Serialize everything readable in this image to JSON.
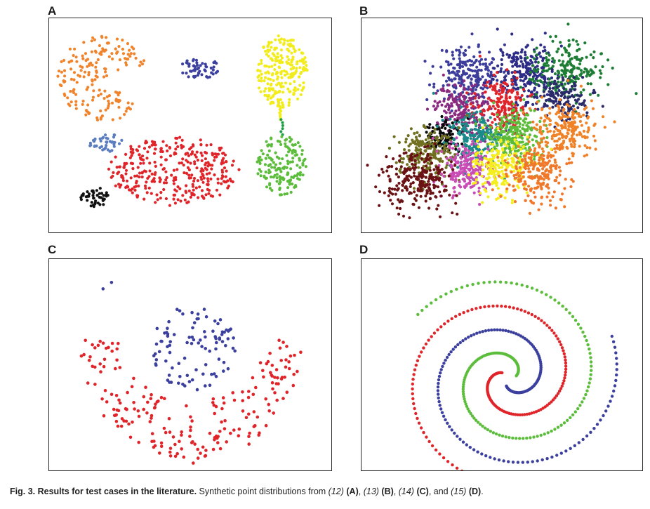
{
  "panels": [
    {
      "label": "A",
      "source": "12"
    },
    {
      "label": "B",
      "source": "13"
    },
    {
      "label": "C",
      "source": "14"
    },
    {
      "label": "D",
      "source": "15"
    }
  ],
  "caption": {
    "bold": "Fig. 3. Results for test cases in the literature.",
    "text_a": "Synthetic point distributions from",
    "ref_a": "(12)",
    "label_a": "(A)",
    "ref_b": "(13)",
    "label_b": "(B)",
    "ref_c": "(14)",
    "label_c": "(C)",
    "ref_d": "(15)",
    "label_d": "(D)",
    "and": "and",
    "end": "."
  },
  "chart_data": [
    {
      "type": "scatter",
      "title": "A",
      "xlim": [
        0,
        100
      ],
      "ylim": [
        0,
        100
      ],
      "grid": false,
      "clusters": [
        {
          "color": "#f0842c",
          "shape": "pacman",
          "center": [
            19,
            72
          ],
          "radius": [
            16,
            20
          ],
          "count": 180
        },
        {
          "color": "#3b3f9e",
          "shape": "ellipse",
          "center": [
            53,
            77
          ],
          "radius": [
            7,
            5
          ],
          "count": 55
        },
        {
          "color": "#f2ec1d",
          "shape": "ellipse",
          "center": [
            82,
            75
          ],
          "radius": [
            9,
            17
          ],
          "count": 230
        },
        {
          "color": "#f2ec1d",
          "shape": "bridge",
          "from": [
            81,
            60
          ],
          "to": [
            82,
            53
          ],
          "count": 10
        },
        {
          "color": "#23a14a",
          "shape": "bridge",
          "from": [
            82,
            53
          ],
          "to": [
            82,
            46
          ],
          "count": 6
        },
        {
          "color": "#5a7cc0",
          "shape": "ellipse",
          "center": [
            20,
            42
          ],
          "radius": [
            6,
            4.5
          ],
          "count": 40
        },
        {
          "color": "#e0252a",
          "shape": "ellipse",
          "center": [
            44,
            29
          ],
          "radius": [
            23,
            16
          ],
          "count": 330
        },
        {
          "color": "#5bbd3b",
          "shape": "ellipse",
          "center": [
            82,
            32
          ],
          "radius": [
            9,
            14
          ],
          "count": 160
        },
        {
          "color": "#111111",
          "shape": "ellipse",
          "center": [
            16,
            17
          ],
          "radius": [
            5,
            4.5
          ],
          "count": 45
        }
      ]
    },
    {
      "type": "scatter",
      "title": "B",
      "xlim": [
        0,
        100
      ],
      "ylim": [
        0,
        100
      ],
      "grid": false,
      "clusters": [
        {
          "color": "#3c3d9b",
          "center": [
            38,
            74
          ],
          "spread": 5.5,
          "count": 220
        },
        {
          "color": "#2c2b86",
          "center": [
            58,
            75
          ],
          "spread": 5.5,
          "count": 240
        },
        {
          "color": "#1e7d35",
          "center": [
            72,
            76
          ],
          "spread": 5.5,
          "count": 220
        },
        {
          "color": "#8b2a7e",
          "center": [
            36,
            58
          ],
          "spread": 5,
          "count": 200
        },
        {
          "color": "#e0252a",
          "center": [
            50,
            59
          ],
          "spread": 5,
          "count": 200
        },
        {
          "color": "#2a2a6a",
          "center": [
            72,
            62
          ],
          "spread": 4.5,
          "count": 130
        },
        {
          "color": "#0a0a0a",
          "center": [
            29,
            45
          ],
          "spread": 3.2,
          "count": 120
        },
        {
          "color": "#1a8a8a",
          "center": [
            41,
            44
          ],
          "spread": 5,
          "count": 220
        },
        {
          "color": "#5cbc3a",
          "center": [
            54,
            45
          ],
          "spread": 5,
          "count": 240
        },
        {
          "color": "#f08228",
          "center": [
            72,
            48
          ],
          "spread": 5.5,
          "count": 230
        },
        {
          "color": "#707020",
          "center": [
            23,
            37
          ],
          "spread": 5,
          "count": 200
        },
        {
          "color": "#c84cb4",
          "center": [
            37,
            30
          ],
          "spread": 5,
          "count": 200
        },
        {
          "color": "#f5ee1e",
          "center": [
            50,
            31
          ],
          "spread": 5,
          "count": 220
        },
        {
          "color": "#f0782a",
          "center": [
            62,
            28
          ],
          "spread": 5.5,
          "count": 220
        },
        {
          "color": "#6b1214",
          "center": [
            20,
            25
          ],
          "spread": 5.5,
          "count": 240
        }
      ]
    },
    {
      "type": "scatter",
      "title": "C",
      "xlim": [
        0,
        100
      ],
      "ylim": [
        0,
        100
      ],
      "grid": false,
      "series": [
        {
          "color": "#3b3f9e",
          "shape": "disk",
          "center": [
            51,
            58
          ],
          "radius": [
            15,
            20
          ],
          "count": 95,
          "outliers": [
            [
              22,
              89
            ],
            [
              19,
              86
            ]
          ]
        },
        {
          "color": "#e0252a",
          "shape": "crescent",
          "center": [
            50,
            62
          ],
          "outer": [
            39,
            58
          ],
          "inner": [
            25,
            29
          ],
          "count": 210
        }
      ]
    },
    {
      "type": "scatter",
      "title": "D",
      "xlim": [
        0,
        100
      ],
      "ylim": [
        0,
        100
      ],
      "grid": false,
      "series": [
        {
          "color": "#5bbd3b",
          "shape": "spiral",
          "center": [
            52,
            44
          ],
          "r_start": 3,
          "r_end": 40,
          "count": 160
        },
        {
          "color": "#e0252a",
          "shape": "spiral",
          "center": [
            52,
            44
          ],
          "r_start": 3,
          "r_end": 40,
          "count": 160
        },
        {
          "color": "#3b3f9e",
          "shape": "spiral",
          "center": [
            52,
            44
          ],
          "r_start": 3,
          "r_end": 40,
          "count": 160
        }
      ]
    }
  ]
}
